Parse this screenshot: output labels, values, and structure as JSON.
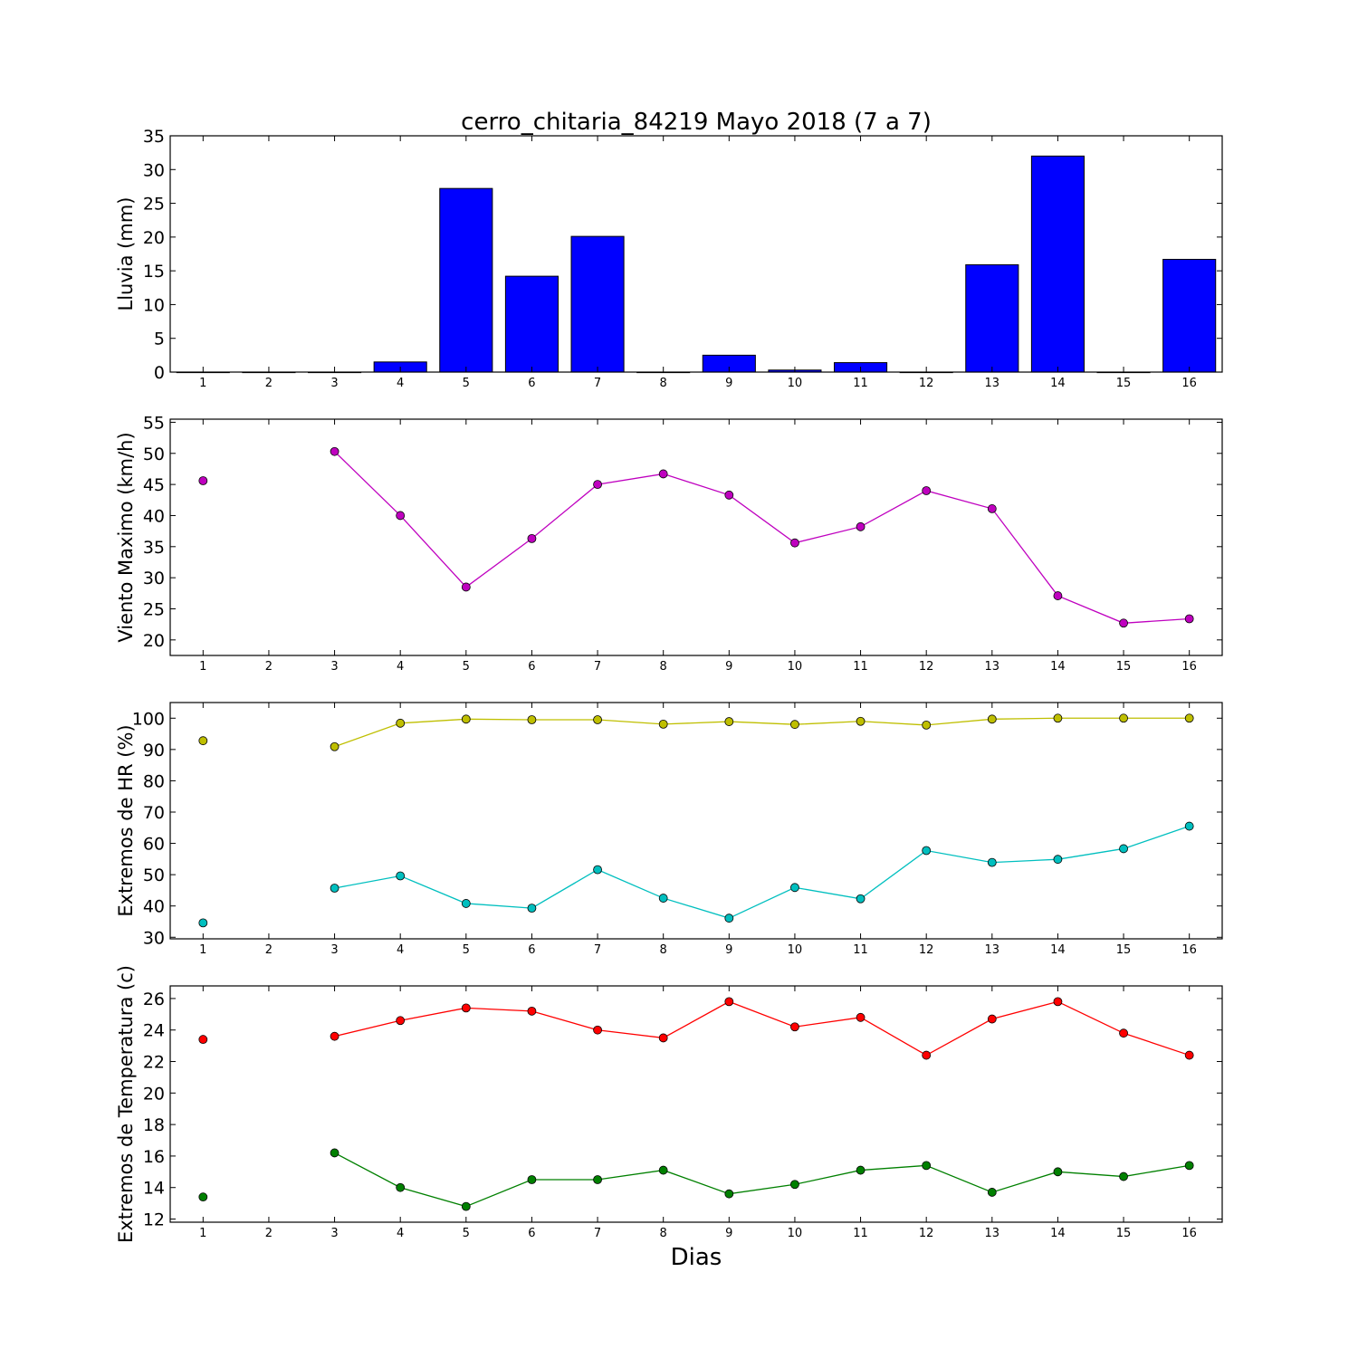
{
  "title": "cerro_chitaria_84219 Mayo 2018  (7 a 7)",
  "xlabel": "Dias",
  "chart_data": [
    {
      "type": "bar",
      "ylabel": "Lluvia (mm)",
      "x": [
        1,
        2,
        3,
        4,
        5,
        6,
        7,
        8,
        9,
        10,
        11,
        12,
        13,
        14,
        15,
        16
      ],
      "values": [
        0,
        0,
        0,
        1.5,
        27.2,
        14.2,
        20.1,
        0,
        2.5,
        0.3,
        1.4,
        0,
        15.9,
        32.0,
        0,
        16.7
      ],
      "xlim": [
        0.5,
        16.5
      ],
      "ylim": [
        0,
        35
      ],
      "yticks": [
        0,
        5,
        10,
        15,
        20,
        25,
        30,
        35
      ],
      "color": "#0000ff"
    },
    {
      "type": "line",
      "ylabel": "Viento Maximo (km/h)",
      "x": [
        1,
        2,
        3,
        4,
        5,
        6,
        7,
        8,
        9,
        10,
        11,
        12,
        13,
        14,
        15,
        16
      ],
      "xlim": [
        0.5,
        16.5
      ],
      "ylim": [
        17.5,
        55.5
      ],
      "yticks": [
        20,
        25,
        30,
        35,
        40,
        45,
        50,
        55
      ],
      "series": [
        {
          "color": "#bf00bf",
          "values": [
            45.6,
            null,
            50.3,
            40.0,
            28.5,
            36.3,
            45.0,
            46.7,
            43.3,
            35.6,
            38.2,
            44.0,
            41.1,
            27.1,
            22.7,
            23.4
          ]
        }
      ]
    },
    {
      "type": "line",
      "ylabel": "Extremos de HR (%)",
      "x": [
        1,
        2,
        3,
        4,
        5,
        6,
        7,
        8,
        9,
        10,
        11,
        12,
        13,
        14,
        15,
        16
      ],
      "xlim": [
        0.5,
        16.5
      ],
      "ylim": [
        29.5,
        105
      ],
      "yticks": [
        30,
        40,
        50,
        60,
        70,
        80,
        90,
        100
      ],
      "series": [
        {
          "color": "#bfbf00",
          "values": [
            92.8,
            null,
            90.9,
            98.4,
            99.7,
            99.5,
            99.5,
            98.1,
            98.9,
            98.0,
            99.0,
            97.8,
            99.7,
            100.0,
            100.0,
            100.0
          ]
        },
        {
          "color": "#00bfbf",
          "values": [
            34.6,
            null,
            45.7,
            49.6,
            40.8,
            39.3,
            51.6,
            42.5,
            36.1,
            45.9,
            42.3,
            57.7,
            53.9,
            54.9,
            58.3,
            65.5
          ]
        }
      ]
    },
    {
      "type": "line",
      "ylabel": "Extremos de Temperatura (c)",
      "x": [
        1,
        2,
        3,
        4,
        5,
        6,
        7,
        8,
        9,
        10,
        11,
        12,
        13,
        14,
        15,
        16
      ],
      "xlim": [
        0.5,
        16.5
      ],
      "ylim": [
        11.8,
        26.8
      ],
      "yticks": [
        12,
        14,
        16,
        18,
        20,
        22,
        24,
        26
      ],
      "series": [
        {
          "color": "#ff0000",
          "values": [
            23.4,
            null,
            23.6,
            24.6,
            25.4,
            25.2,
            24.0,
            23.5,
            25.8,
            24.2,
            24.8,
            22.4,
            24.7,
            25.8,
            23.8,
            22.4
          ]
        },
        {
          "color": "#008000",
          "values": [
            13.4,
            null,
            16.2,
            14.0,
            12.8,
            14.5,
            14.5,
            15.1,
            13.6,
            14.2,
            15.1,
            15.4,
            13.7,
            15.0,
            14.7,
            15.4
          ]
        }
      ]
    }
  ]
}
